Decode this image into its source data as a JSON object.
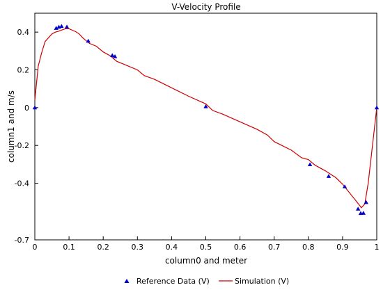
{
  "chart_data": {
    "type": "scatter",
    "title": "V-Velocity Profile",
    "xlabel": "column0 and meter",
    "ylabel": "column1 and m/s",
    "xlim": [
      0,
      1
    ],
    "ylim": [
      -0.7,
      0.5
    ],
    "x_ticks": [
      0,
      0.1,
      0.2,
      0.3,
      0.4,
      0.5,
      0.6,
      0.7,
      0.8,
      0.9,
      1
    ],
    "x_tick_labels": [
      "0",
      "0.1",
      "0.2",
      "0.3",
      "0.4",
      "0.5",
      "0.6",
      "0.7",
      "0.8",
      "0.9",
      "1"
    ],
    "y_ticks": [
      -0.7,
      -0.4,
      -0.2,
      0,
      0.2,
      0.4
    ],
    "y_tick_labels": [
      "-0.7",
      "-0.4",
      "-0.2",
      "0",
      "0.2",
      "0.4"
    ],
    "grid": false,
    "legend_position": "bottom",
    "series": [
      {
        "name": "Reference Data (V)",
        "kind": "marker",
        "marker": "triangle",
        "color": "#0000cc",
        "x": [
          0,
          0.0625,
          0.0703,
          0.0781,
          0.0938,
          0.1563,
          0.2266,
          0.2344,
          0.5,
          0.8047,
          0.8594,
          0.9063,
          0.9453,
          0.9531,
          0.9609,
          0.9688,
          1
        ],
        "y": [
          0,
          0.421,
          0.427,
          0.431,
          0.428,
          0.353,
          0.277,
          0.271,
          0.006,
          -0.301,
          -0.363,
          -0.418,
          -0.536,
          -0.559,
          -0.558,
          -0.501,
          0
        ]
      },
      {
        "name": "Simulation (V)",
        "kind": "line",
        "color": "#cc0000",
        "x": [
          0,
          0.01,
          0.02,
          0.03,
          0.04,
          0.05,
          0.06,
          0.07,
          0.08,
          0.09,
          0.1,
          0.11,
          0.12,
          0.13,
          0.14,
          0.15,
          0.16,
          0.18,
          0.2,
          0.22,
          0.24,
          0.26,
          0.28,
          0.3,
          0.32,
          0.35,
          0.4,
          0.45,
          0.5,
          0.52,
          0.55,
          0.6,
          0.65,
          0.68,
          0.7,
          0.75,
          0.78,
          0.8,
          0.82,
          0.85,
          0.88,
          0.9,
          0.92,
          0.94,
          0.955,
          0.965,
          0.975,
          1
        ],
        "y": [
          0.04,
          0.22,
          0.29,
          0.35,
          0.37,
          0.39,
          0.4,
          0.405,
          0.412,
          0.418,
          0.418,
          0.41,
          0.402,
          0.39,
          0.37,
          0.355,
          0.34,
          0.325,
          0.295,
          0.275,
          0.245,
          0.23,
          0.215,
          0.2,
          0.17,
          0.15,
          0.105,
          0.06,
          0.02,
          -0.015,
          -0.035,
          -0.075,
          -0.115,
          -0.145,
          -0.18,
          -0.225,
          -0.265,
          -0.275,
          -0.305,
          -0.335,
          -0.37,
          -0.405,
          -0.45,
          -0.495,
          -0.53,
          -0.51,
          -0.4,
          0
        ]
      }
    ]
  }
}
